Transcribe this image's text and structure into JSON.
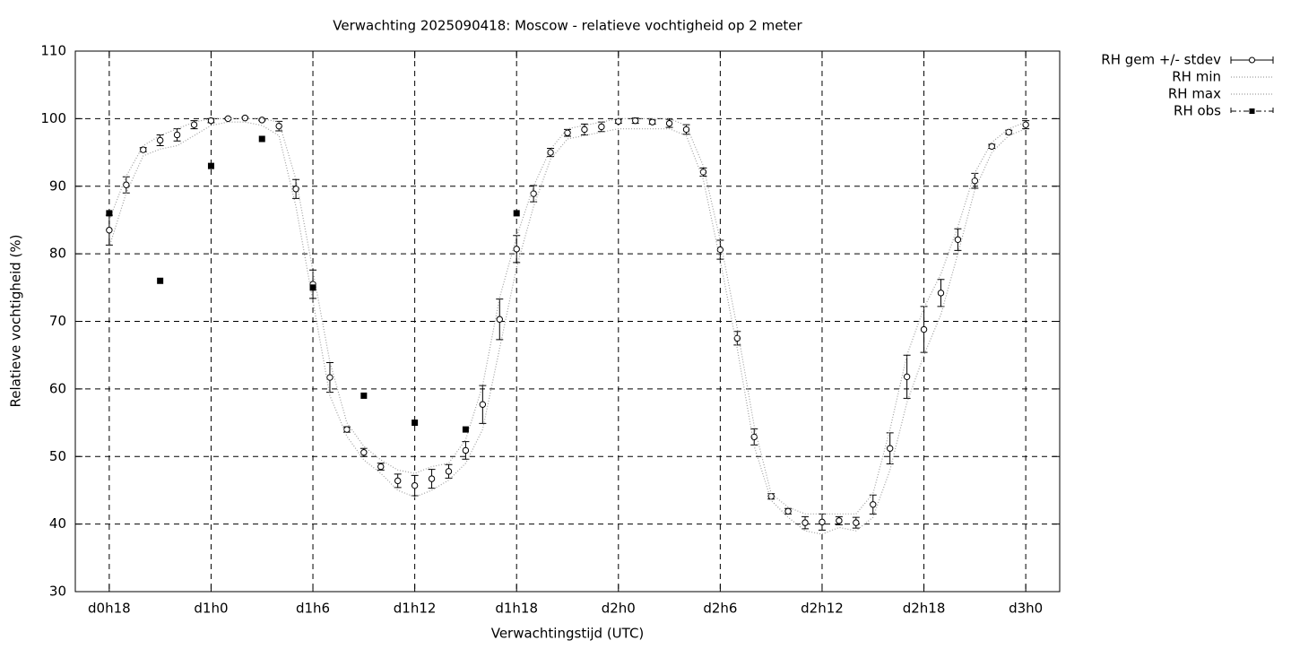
{
  "chart_data": {
    "type": "errorbar-line",
    "title": "Verwachting 2025090418: Moscow - relatieve vochtigheid op 2 meter",
    "x_label": "Verwachtingstijd (UTC)",
    "y_label": "Relatieve vochtigheid (%)",
    "xlim": [
      16,
      74
    ],
    "ylim": [
      30,
      110
    ],
    "xticks": [
      {
        "value": 18,
        "label": "d0h18"
      },
      {
        "value": 24,
        "label": "d1h0"
      },
      {
        "value": 30,
        "label": "d1h6"
      },
      {
        "value": 36,
        "label": "d1h12"
      },
      {
        "value": 42,
        "label": "d1h18"
      },
      {
        "value": 48,
        "label": "d2h0"
      },
      {
        "value": 54,
        "label": "d2h6"
      },
      {
        "value": 60,
        "label": "d2h12"
      },
      {
        "value": 66,
        "label": "d2h18"
      },
      {
        "value": 72,
        "label": "d3h0"
      }
    ],
    "yticks": [
      30,
      40,
      50,
      60,
      70,
      80,
      90,
      100,
      110
    ],
    "grid": true,
    "legend": "top-right-outside",
    "x": [
      18,
      19,
      20,
      21,
      22,
      23,
      24,
      25,
      26,
      27,
      28,
      29,
      30,
      31,
      32,
      33,
      34,
      35,
      36,
      37,
      38,
      39,
      40,
      41,
      42,
      43,
      44,
      45,
      46,
      47,
      48,
      49,
      50,
      51,
      52,
      53,
      54,
      55,
      56,
      57,
      58,
      59,
      60,
      61,
      62,
      63,
      64,
      65,
      66,
      67,
      68,
      69,
      70,
      71,
      72
    ],
    "series": [
      {
        "name": "RH gem +/- stdev",
        "color": "#000000",
        "style": "errorbar",
        "values": [
          83.5,
          90.2,
          95.4,
          96.8,
          97.6,
          99.1,
          99.7,
          100.0,
          100.1,
          99.8,
          98.9,
          89.6,
          75.5,
          61.7,
          54.0,
          50.6,
          48.5,
          46.4,
          45.7,
          46.7,
          47.8,
          50.9,
          57.7,
          70.3,
          80.7,
          88.9,
          95.0,
          97.9,
          98.4,
          98.8,
          99.6,
          99.7,
          99.5,
          99.3,
          98.4,
          92.1,
          80.6,
          67.5,
          52.9,
          44.1,
          41.9,
          40.2,
          40.3,
          40.5,
          40.2,
          42.9,
          51.2,
          61.8,
          68.8,
          74.2,
          82.1,
          90.8,
          95.9,
          98.0,
          99.1
        ],
        "errors": [
          2.2,
          1.2,
          0.3,
          0.8,
          0.9,
          0.6,
          0.3,
          0.1,
          0.1,
          0.1,
          0.7,
          1.4,
          2.1,
          2.2,
          0.4,
          0.6,
          0.5,
          1.0,
          1.5,
          1.4,
          1.0,
          1.3,
          2.8,
          3.0,
          2.0,
          1.2,
          0.6,
          0.5,
          0.8,
          0.7,
          0.3,
          0.4,
          0.3,
          0.6,
          0.7,
          0.6,
          1.4,
          1.0,
          1.2,
          0.4,
          0.4,
          0.9,
          1.2,
          0.6,
          0.8,
          1.4,
          2.3,
          3.2,
          3.4,
          2.0,
          1.6,
          1.1,
          0.3,
          0.3,
          0.6
        ]
      },
      {
        "name": "RH min",
        "color": "#a0a0a0",
        "style": "dotted",
        "values": [
          81,
          89,
          94.5,
          95.5,
          96,
          97.5,
          99,
          99.5,
          99.5,
          99,
          97.5,
          87,
          73,
          59,
          53,
          49.5,
          47.5,
          45,
          44,
          45,
          46.5,
          49,
          54,
          66,
          78,
          87,
          94,
          97,
          97.5,
          98,
          98.5,
          98.5,
          98.5,
          98.5,
          97.5,
          91,
          79,
          66,
          51.5,
          43.5,
          41,
          39,
          38.5,
          39.5,
          39,
          41,
          48,
          58,
          65,
          71,
          80,
          89.5,
          95,
          97.5,
          98.5
        ]
      },
      {
        "name": "RH max",
        "color": "#a0a0a0",
        "style": "dotted",
        "values": [
          85,
          91.5,
          96,
          97.5,
          98.5,
          99.5,
          100,
          100,
          100,
          100,
          99.5,
          91,
          77.5,
          64,
          55,
          51.5,
          49.5,
          48,
          47.5,
          48.5,
          49,
          52.5,
          60.5,
          73.5,
          82.5,
          90,
          95.5,
          98.5,
          99,
          99.5,
          100,
          100,
          100,
          100,
          99,
          93,
          82,
          69,
          54.5,
          44.5,
          42.5,
          41.5,
          41.5,
          41.5,
          41.5,
          44.5,
          54,
          65,
          72,
          77,
          84,
          92,
          96.5,
          98.5,
          99.5
        ]
      },
      {
        "name": "RH obs",
        "color": "#000000",
        "style": "points",
        "x": [
          18,
          21,
          24,
          27,
          30,
          33,
          36,
          39,
          42
        ],
        "values": [
          86,
          76,
          93,
          97,
          75,
          59,
          55,
          54,
          86
        ]
      }
    ]
  }
}
